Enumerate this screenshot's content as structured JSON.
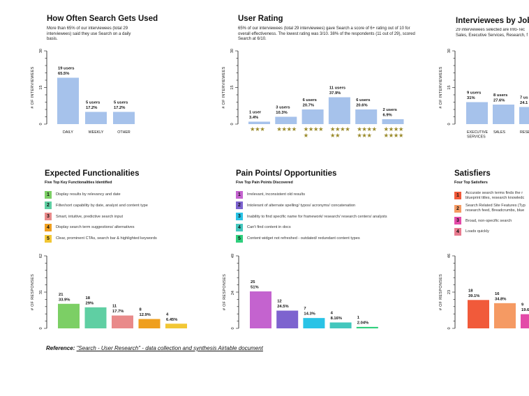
{
  "panels": {
    "frequency": {
      "title": "How Often Search Gets Used",
      "description": "More than 65% of our interviewees (total 29 interviewees) said they use Search on a daily basis."
    },
    "rating": {
      "title": "User Rating",
      "description": "65% of our interviewees (total 29 interviewees) gave Search a score of 6+ rating out of 10 for overall effectiveness. The lowest rating was 3/10.  38% of the respondents (11 out of 29), scored Search at 6/10."
    },
    "jobtype": {
      "title": "Interviewees by Job Ty",
      "description": "29 interviewees selected are Info-Tec Sales, Executive Services, Research, f"
    },
    "functionalities": {
      "title": "Expected Functionalities",
      "subtitle": "Five Top Key Functionalities Identified",
      "items": [
        {
          "num": "1",
          "text": "Display results by relevancy and date",
          "color": "#7ccf65"
        },
        {
          "num": "2",
          "text": "Filter/sort capability by date, analyst and content type",
          "color": "#5fcfa3"
        },
        {
          "num": "3",
          "text": "Smart, intuitive, predictive search input",
          "color": "#e98a8a"
        },
        {
          "num": "4",
          "text": "Display search term suggestions/ alternatives",
          "color": "#ef9f1f"
        },
        {
          "num": "5",
          "text": "Clear, prominent CTAs, search bar & highlighted keywords",
          "color": "#f2c735"
        }
      ]
    },
    "painpoints": {
      "title": "Pain Points/ Opportunities",
      "subtitle": "Five Top Pain Points Discovered",
      "items": [
        {
          "num": "1",
          "text": "Irrelevant, inconsistent old results",
          "color": "#c463cf"
        },
        {
          "num": "2",
          "text": "Intolerant of alternate spelling/ typos/ acronyms/ concatenation",
          "color": "#7d63cf"
        },
        {
          "num": "3",
          "text": "Inability to find specific name for framework/ research/ research centers/ analysts",
          "color": "#29c3e6"
        },
        {
          "num": "4",
          "text": "Can't find content in docs",
          "color": "#43c7bd"
        },
        {
          "num": "5",
          "text": "Content widget not refreshed - outdated/ redundant content types",
          "color": "#2fcf7d"
        }
      ]
    },
    "satisfiers": {
      "title": "Satisfiers",
      "subtitle": "Four Top Satisfiers",
      "items": [
        {
          "num": "1",
          "text": "Accurate search terms finds the r",
          "text2": "blueprint titles, research knowledc",
          "color": "#f15a3a"
        },
        {
          "num": "2",
          "text": "Search Related Site Features (Typ",
          "text2": "research feed, Breadcrumbs, blue",
          "color": "#f59a63"
        },
        {
          "num": "3",
          "text": "Broad, non-specific search",
          "color": "#e34aa8"
        },
        {
          "num": "4",
          "text": "Loads quickly",
          "color": "#e87a8e"
        }
      ]
    }
  },
  "reference": {
    "label": "Reference:",
    "link": "\"Search - User Research\" - data collection and synthesis Airtable document"
  },
  "chart_data": [
    {
      "type": "bar",
      "id": "frequency",
      "categories": [
        "DAILY",
        "WEEKLY",
        "OTHER"
      ],
      "values": [
        19,
        5,
        5
      ],
      "labels": [
        [
          "19 users",
          "65.5%"
        ],
        [
          "5 users",
          "17.2%"
        ],
        [
          "5 users",
          "17.2%"
        ]
      ],
      "ylabel": "# OF INTERVIEWEES",
      "yticks": [
        0,
        15,
        30
      ],
      "ylim": [
        0,
        30
      ],
      "color": "#a6c2eb"
    },
    {
      "type": "bar",
      "id": "rating",
      "categories": [
        "3",
        "4",
        "5",
        "6",
        "7",
        "8"
      ],
      "values": [
        1,
        3,
        6,
        11,
        6,
        2
      ],
      "labels": [
        [
          "1 user",
          "3.4%"
        ],
        [
          "3 users",
          "10.3%"
        ],
        [
          "6 users",
          "20.7%"
        ],
        [
          "11 users",
          "37.9%"
        ],
        [
          "6 users",
          "20.6%"
        ],
        [
          "2 users",
          "6.9%"
        ]
      ],
      "stars": [
        [
          "★★★"
        ],
        [
          "★★★★"
        ],
        [
          "★★★★",
          "★"
        ],
        [
          "★★★★",
          "★★"
        ],
        [
          "★★★★",
          "★★★"
        ],
        [
          "★★★★",
          "★★★★"
        ]
      ],
      "ylabel": "# OF INTERVIEWEES",
      "yticks": [
        0,
        15,
        30
      ],
      "ylim": [
        0,
        30
      ],
      "color": "#a6c2eb",
      "star_color": "#9a8a2a"
    },
    {
      "type": "bar",
      "id": "jobtype",
      "categories": [
        [
          "EXECUTIVE",
          "SERVICES"
        ],
        [
          "SALES"
        ],
        [
          "RESE"
        ]
      ],
      "values": [
        9,
        8,
        7
      ],
      "labels": [
        [
          "9 users",
          "31%"
        ],
        [
          "8 users",
          "27.6%"
        ],
        [
          "7 us",
          "24.1"
        ]
      ],
      "ylabel": "# OF INTERVIEWEES",
      "yticks": [
        0,
        15,
        30
      ],
      "ylim": [
        0,
        30
      ],
      "color": "#a6c2eb"
    },
    {
      "type": "bar",
      "id": "functionalities",
      "categories": [
        "1",
        "2",
        "3",
        "4",
        "5"
      ],
      "values": [
        21,
        18,
        11,
        8,
        4
      ],
      "labels": [
        [
          "21",
          "33.9%"
        ],
        [
          "18",
          "29%"
        ],
        [
          "11",
          "17.7%"
        ],
        [
          "8",
          "12.9%"
        ],
        [
          "4",
          "6.45%"
        ]
      ],
      "colors": [
        "#7ccf65",
        "#5fcfa3",
        "#e98a8a",
        "#ef9f1f",
        "#f2c735"
      ],
      "ylabel": "# OF RESPONSES",
      "yticks": [
        0,
        31,
        62
      ],
      "ylim": [
        0,
        62
      ]
    },
    {
      "type": "bar",
      "id": "painpoints",
      "categories": [
        "1",
        "2",
        "3",
        "4",
        "5"
      ],
      "values": [
        25,
        12,
        7,
        4,
        1
      ],
      "labels": [
        [
          "25",
          "51%"
        ],
        [
          "12",
          "24.5%"
        ],
        [
          "7",
          "14.3%"
        ],
        [
          "4",
          "8.16%"
        ],
        [
          "1",
          "2.04%"
        ]
      ],
      "colors": [
        "#c463cf",
        "#7d63cf",
        "#29c3e6",
        "#43c7bd",
        "#2fcf7d"
      ],
      "ylabel": "# OF RESPONSES",
      "yticks": [
        0,
        24,
        49
      ],
      "ylim": [
        0,
        49
      ]
    },
    {
      "type": "bar",
      "id": "satisfiers",
      "categories": [
        "1",
        "2",
        "3"
      ],
      "values": [
        18,
        16,
        9
      ],
      "labels": [
        [
          "18",
          "39.1%"
        ],
        [
          "16",
          "34.8%"
        ],
        [
          "9",
          "19.6"
        ]
      ],
      "colors": [
        "#f15a3a",
        "#f59a63",
        "#e34aa8"
      ],
      "ylabel": "# OF RESPONSES",
      "yticks": [
        0,
        23,
        46
      ],
      "ylim": [
        0,
        46
      ]
    }
  ]
}
